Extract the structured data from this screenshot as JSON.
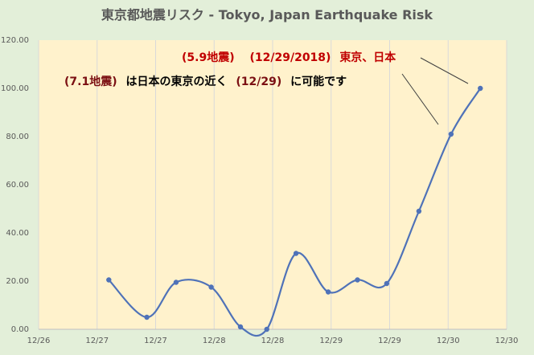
{
  "chart_data": {
    "type": "line",
    "title": "東京都地震リスク -  Tokyo, Japan Earthquake Risk",
    "xlabel": "",
    "ylabel": "",
    "x_tick_labels": [
      "12/26",
      "12/27",
      "12/27",
      "12/28",
      "12/28",
      "12/29",
      "12/29",
      "12/30",
      "12/30"
    ],
    "y_tick_labels": [
      "0.00",
      "20.00",
      "40.00",
      "60.00",
      "80.00",
      "100.00",
      "120.00"
    ],
    "xlim": [
      0,
      8
    ],
    "ylim": [
      0,
      120
    ],
    "grid": "vertical",
    "series": [
      {
        "x": [
          1.2,
          1.85,
          2.35,
          2.95,
          3.45,
          3.9,
          4.4,
          4.95,
          5.45,
          5.95,
          6.5,
          7.05,
          7.55
        ],
        "y": [
          20.5,
          5,
          19.5,
          17.5,
          1,
          0,
          31.5,
          15.5,
          20.5,
          19,
          49,
          81,
          100
        ]
      }
    ],
    "annotations": {
      "line1_part1": "(5.9地震)",
      "line1_part2": "(12/29/2018)",
      "line1_part3": "東京、日本",
      "line2_part1": "(7.1地震)",
      "line2_part2": "は日本の東京の近く",
      "line2_part3": "(12/29)",
      "line2_part4": "に可能です"
    },
    "colors": {
      "line": "#4f72b8",
      "plot_bg": "#fff2cc",
      "page_bg": "#e3efd9",
      "grid": "#d9d9d9"
    }
  }
}
